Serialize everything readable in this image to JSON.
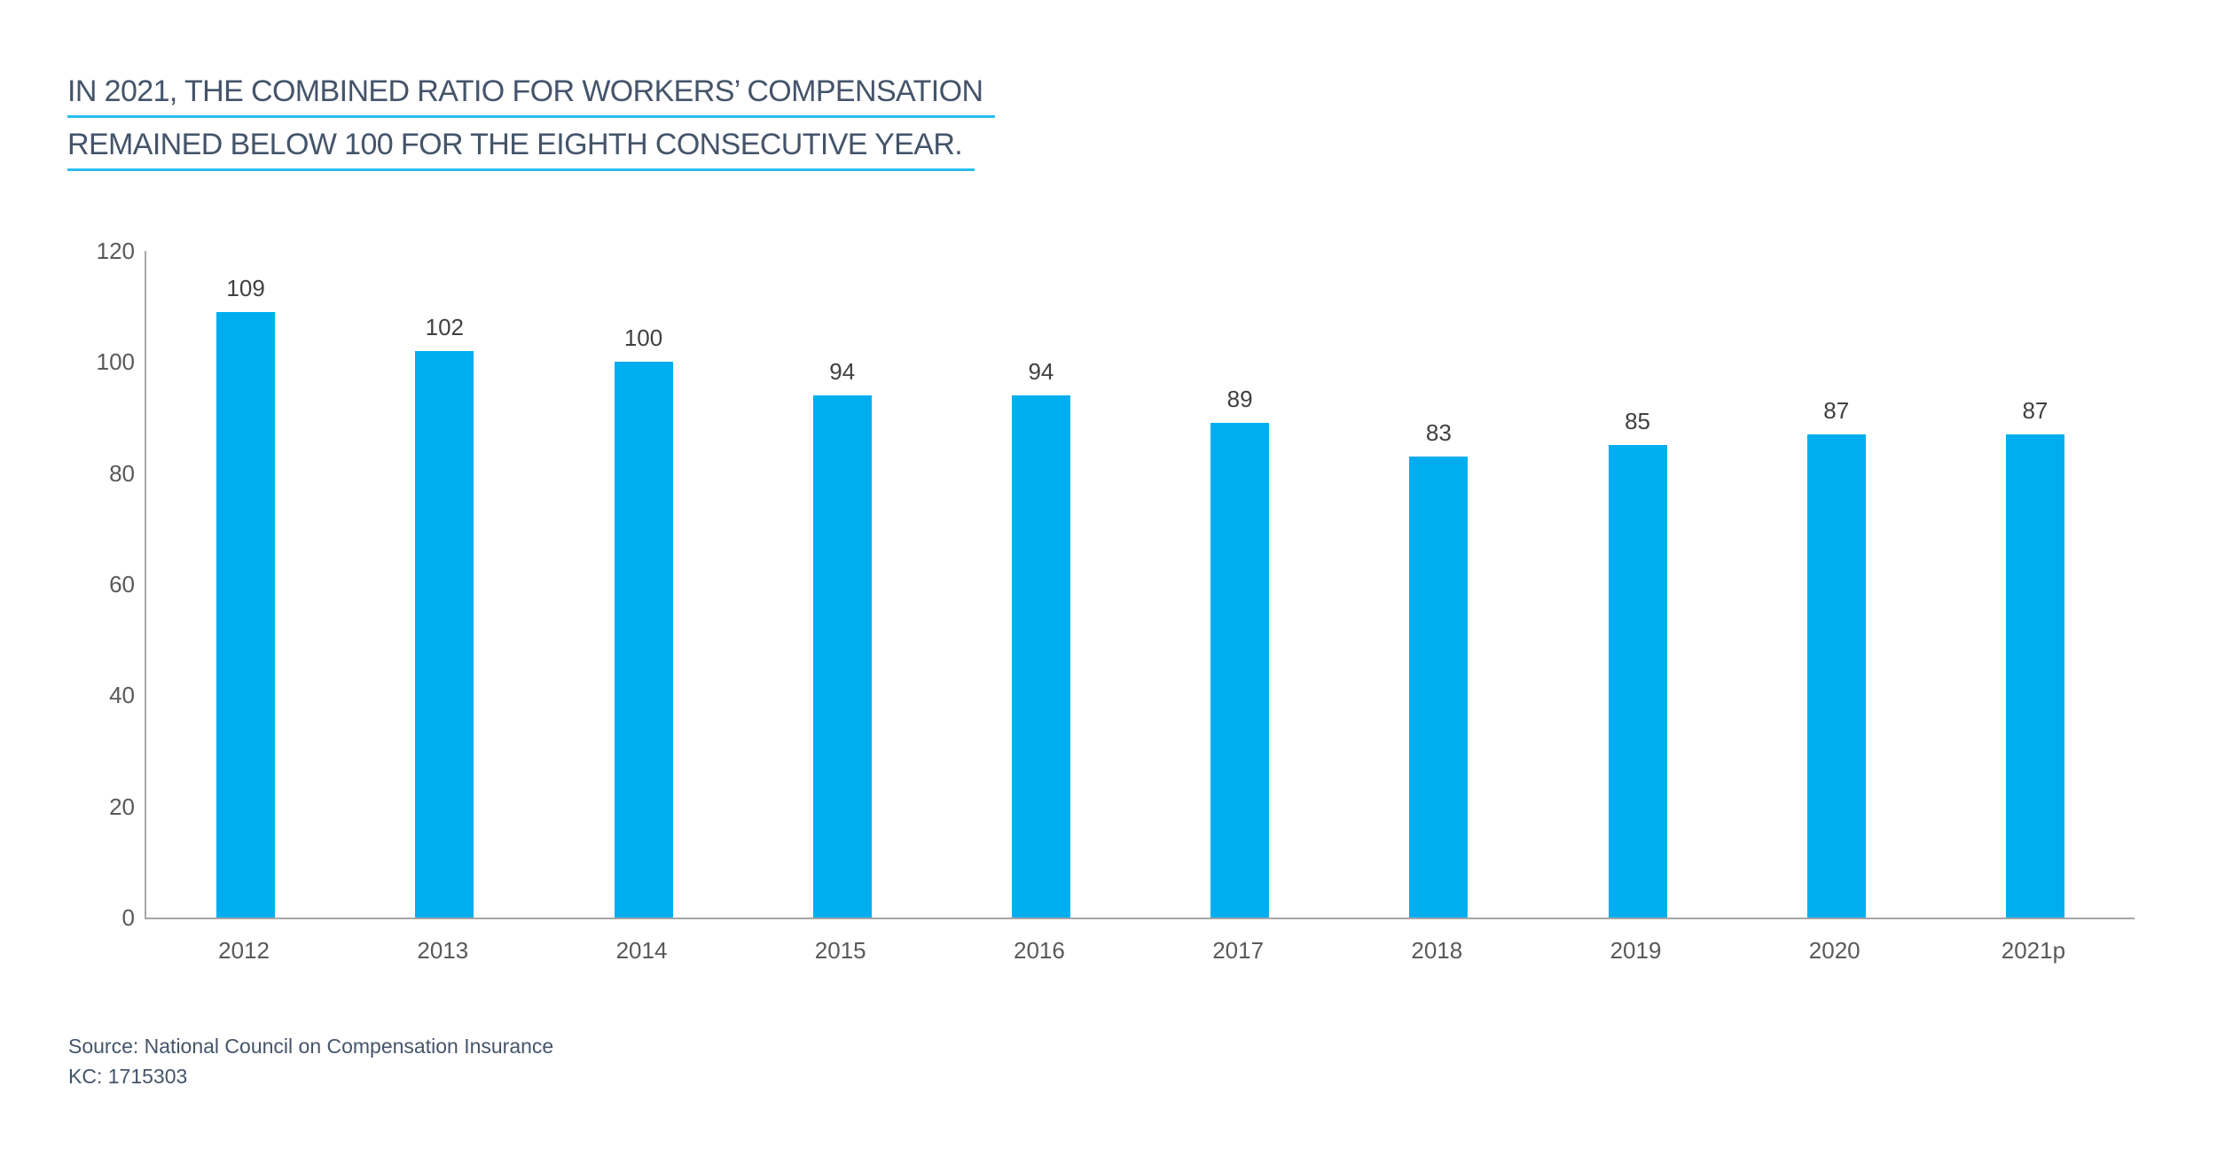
{
  "title": {
    "line1": "IN 2021, THE COMBINED RATIO FOR WORKERS’ COMPENSATION",
    "line2": "REMAINED BELOW 100 FOR THE EIGHTH CONSECUTIVE YEAR."
  },
  "source": {
    "line1": "Source: National Council on Compensation Insurance",
    "line2": "KC: 1715303"
  },
  "colors": {
    "page_bg": "#ffffff",
    "bar": "#00AEEF",
    "title_text": "#44546A",
    "title_underline": "#29BCEE",
    "axis_line": "#A6A6A6",
    "tick_label": "#595959",
    "value_label": "#404040",
    "source_text": "#44546A"
  },
  "chart_data": {
    "type": "bar",
    "title": "IN 2021, THE COMBINED RATIO FOR WORKERS’ COMPENSATION REMAINED BELOW 100 FOR THE EIGHTH CONSECUTIVE YEAR.",
    "categories": [
      "2012",
      "2013",
      "2014",
      "2015",
      "2016",
      "2017",
      "2018",
      "2019",
      "2020",
      "2021p"
    ],
    "values": [
      109,
      102,
      100,
      94,
      94,
      89,
      83,
      85,
      87,
      87
    ],
    "xlabel": "",
    "ylabel": "",
    "ylim": [
      0,
      120
    ],
    "yticks": [
      0,
      20,
      40,
      60,
      80,
      100,
      120
    ],
    "grid": false,
    "legend_position": "none",
    "value_labels_shown": true,
    "source_note": "Source: National Council on Compensation Insurance",
    "kc_number": "KC: 1715303"
  }
}
